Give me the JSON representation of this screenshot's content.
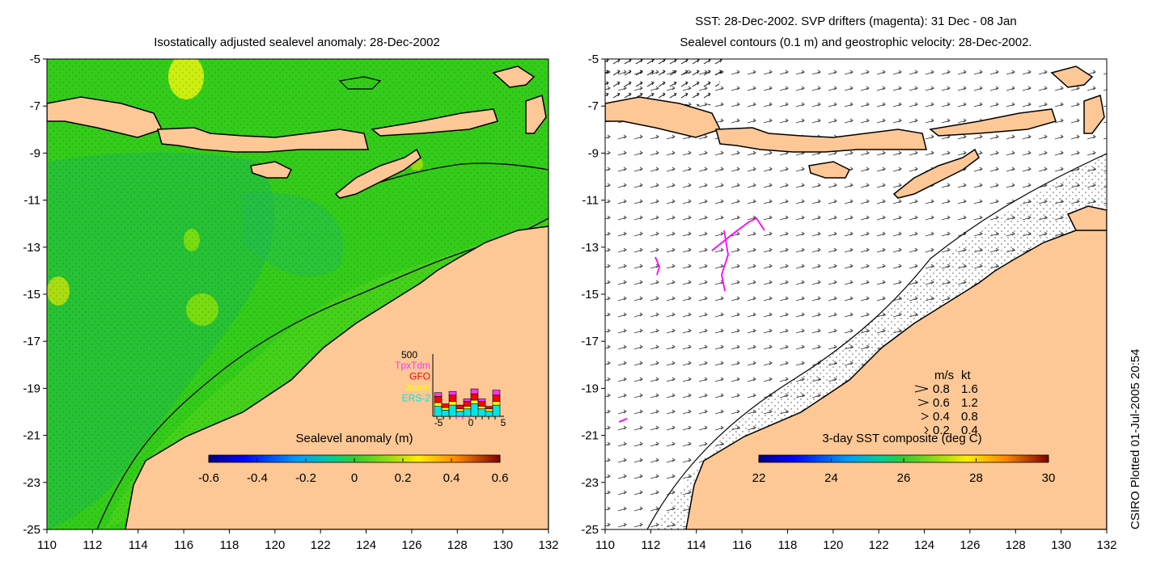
{
  "left_panel": {
    "title": "Isostatically adjusted sealevel anomaly: 28-Dec-2002",
    "colorbar": {
      "label": "Sealevel anomaly (m)",
      "range": [
        -0.6,
        0.6
      ],
      "ticks": [
        "-0.6",
        "-0.4",
        "-0.2",
        "0",
        "0.2",
        "0.4",
        "0.6"
      ]
    },
    "inset": {
      "ymax_label": "500",
      "x_ticks": [
        "-5",
        "0",
        "5"
      ],
      "legend": [
        {
          "label": "TpxTdm",
          "color": "#ff33ff"
        },
        {
          "label": "GFO",
          "color": "#ff0000"
        },
        {
          "label": "Jason",
          "color": "#ffff00"
        },
        {
          "label": "ERS-2",
          "color": "#00e5e5"
        }
      ],
      "bars": [
        {
          "day": -4,
          "ers2": 0.16,
          "jason": 0.06,
          "gfo": 0.1,
          "tpx": 0.06
        },
        {
          "day": -3,
          "ers2": 0.1,
          "jason": 0.04,
          "gfo": 0.06,
          "tpx": 0.0
        },
        {
          "day": -2,
          "ers2": 0.18,
          "jason": 0.06,
          "gfo": 0.1,
          "tpx": 0.06
        },
        {
          "day": -1,
          "ers2": 0.08,
          "jason": 0.04,
          "gfo": 0.06,
          "tpx": 0.0
        },
        {
          "day": 0,
          "ers2": 0.12,
          "jason": 0.04,
          "gfo": 0.08,
          "tpx": 0.04
        },
        {
          "day": 1,
          "ers2": 0.2,
          "jason": 0.06,
          "gfo": 0.1,
          "tpx": 0.08
        },
        {
          "day": 2,
          "ers2": 0.12,
          "jason": 0.04,
          "gfo": 0.08,
          "tpx": 0.04
        },
        {
          "day": 3,
          "ers2": 0.08,
          "jason": 0.04,
          "gfo": 0.04,
          "tpx": 0.0
        },
        {
          "day": 4,
          "ers2": 0.18,
          "jason": 0.06,
          "gfo": 0.1,
          "tpx": 0.08
        }
      ]
    }
  },
  "right_panel": {
    "title_line1": "SST: 28-Dec-2002. SVP drifters (magenta): 31 Dec - 08 Jan",
    "title_line2": "Sealevel contours (0.1 m) and geostrophic velocity: 28-Dec-2002.",
    "colorbar": {
      "label": "3-day SST composite (deg C)",
      "range": [
        22,
        30
      ],
      "ticks": [
        "22",
        "24",
        "26",
        "28",
        "30"
      ]
    },
    "velocity_legend": {
      "header_ms": "m/s",
      "header_kt": "kt",
      "rows": [
        {
          "ms": "0.8",
          "kt": "1.6"
        },
        {
          "ms": "0.6",
          "kt": "1.2"
        },
        {
          "ms": "0.4",
          "kt": "0.8"
        },
        {
          "ms": "0.2",
          "kt": "0.4"
        }
      ]
    }
  },
  "axes": {
    "lon_ticks": [
      "110",
      "112",
      "114",
      "116",
      "118",
      "120",
      "122",
      "124",
      "126",
      "128",
      "130",
      "132"
    ],
    "lat_ticks": [
      "-5",
      "-7",
      "-9",
      "-11",
      "-13",
      "-15",
      "-17",
      "-19",
      "-21",
      "-23",
      "-25"
    ],
    "lon_range": [
      110,
      132
    ],
    "lat_range": [
      -25,
      -5
    ]
  },
  "credit": "CSIRO Plotted 01-Jul-2005 20:54",
  "colors": {
    "land": "#fdc896",
    "ocean_green": "#33cc1a",
    "ocean_light": "#66dd1a",
    "ocean_teal": "#22bb55",
    "coast": "#000000",
    "drifter": "#ff00ff"
  }
}
